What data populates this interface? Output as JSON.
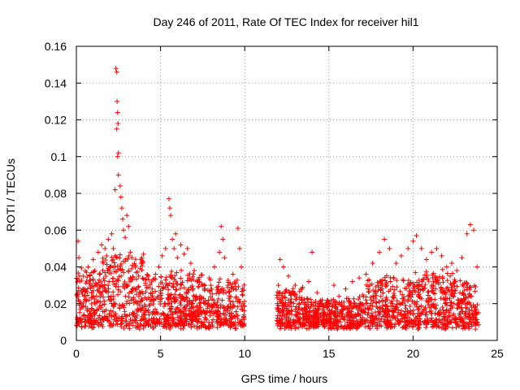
{
  "chart_data": {
    "type": "scatter",
    "title": "Day 246 of 2011, Rate Of TEC Index for receiver hil1",
    "xlabel": "GPS time / hours",
    "ylabel": "ROTI / TECUs",
    "xlim": [
      0,
      25
    ],
    "ylim": [
      0,
      0.16
    ],
    "xticks": [
      0,
      5,
      10,
      15,
      20,
      25
    ],
    "yticks": [
      0,
      0.02,
      0.04,
      0.06,
      0.08,
      0.1,
      0.12,
      0.14,
      0.16
    ],
    "xtick_labels": [
      "0",
      "5",
      "10",
      "15",
      "20",
      "25"
    ],
    "ytick_labels": [
      "0",
      "0.02",
      "0.04",
      "0.06",
      "0.08",
      "0.1",
      "0.12",
      "0.14",
      "0.16"
    ],
    "grid": true,
    "marker": "+",
    "series_color": "#ff0000",
    "gaps_hours": [
      [
        10.0,
        11.9
      ]
    ],
    "series": [
      {
        "name": "hil1",
        "points": [
          [
            0.05,
            0.025
          ],
          [
            0.1,
            0.054
          ],
          [
            0.15,
            0.045
          ],
          [
            0.2,
            0.032
          ],
          [
            0.3,
            0.018
          ],
          [
            0.4,
            0.035
          ],
          [
            0.5,
            0.028
          ],
          [
            0.6,
            0.022
          ],
          [
            0.7,
            0.04
          ],
          [
            0.8,
            0.031
          ],
          [
            0.9,
            0.026
          ],
          [
            1.0,
            0.044
          ],
          [
            1.1,
            0.038
          ],
          [
            1.2,
            0.03
          ],
          [
            1.3,
            0.048
          ],
          [
            1.4,
            0.036
          ],
          [
            1.5,
            0.052
          ],
          [
            1.6,
            0.042
          ],
          [
            1.7,
            0.05
          ],
          [
            1.8,
            0.046
          ],
          [
            1.9,
            0.055
          ],
          [
            2.0,
            0.04
          ],
          [
            2.1,
            0.058
          ],
          [
            2.2,
            0.05
          ],
          [
            2.3,
            0.082
          ],
          [
            2.35,
            0.148
          ],
          [
            2.4,
            0.146
          ],
          [
            2.42,
            0.13
          ],
          [
            2.45,
            0.124
          ],
          [
            2.47,
            0.118
          ],
          [
            2.4,
            0.115
          ],
          [
            2.5,
            0.102
          ],
          [
            2.45,
            0.1
          ],
          [
            2.5,
            0.09
          ],
          [
            2.6,
            0.084
          ],
          [
            2.65,
            0.078
          ],
          [
            2.7,
            0.072
          ],
          [
            2.75,
            0.066
          ],
          [
            2.8,
            0.06
          ],
          [
            2.9,
            0.056
          ],
          [
            3.0,
            0.068
          ],
          [
            3.1,
            0.062
          ],
          [
            3.2,
            0.048
          ],
          [
            3.3,
            0.045
          ],
          [
            3.5,
            0.04
          ],
          [
            3.7,
            0.035
          ],
          [
            3.9,
            0.042
          ],
          [
            4.1,
            0.03
          ],
          [
            4.3,
            0.033
          ],
          [
            4.5,
            0.028
          ],
          [
            4.7,
            0.036
          ],
          [
            4.9,
            0.04
          ],
          [
            5.1,
            0.046
          ],
          [
            5.3,
            0.05
          ],
          [
            5.5,
            0.077
          ],
          [
            5.55,
            0.072
          ],
          [
            5.6,
            0.068
          ],
          [
            5.7,
            0.055
          ],
          [
            5.8,
            0.05
          ],
          [
            5.9,
            0.058
          ],
          [
            6.0,
            0.045
          ],
          [
            6.2,
            0.052
          ],
          [
            6.4,
            0.047
          ],
          [
            6.6,
            0.05
          ],
          [
            6.8,
            0.042
          ],
          [
            7.0,
            0.038
          ],
          [
            7.3,
            0.032
          ],
          [
            7.6,
            0.028
          ],
          [
            7.9,
            0.034
          ],
          [
            8.2,
            0.04
          ],
          [
            8.5,
            0.048
          ],
          [
            8.6,
            0.062
          ],
          [
            8.7,
            0.055
          ],
          [
            8.8,
            0.045
          ],
          [
            9.0,
            0.03
          ],
          [
            9.3,
            0.036
          ],
          [
            9.6,
            0.061
          ],
          [
            9.7,
            0.05
          ],
          [
            9.8,
            0.04
          ],
          [
            9.9,
            0.02
          ],
          [
            12.0,
            0.03
          ],
          [
            12.1,
            0.044
          ],
          [
            12.3,
            0.04
          ],
          [
            12.6,
            0.035
          ],
          [
            13.0,
            0.03
          ],
          [
            13.4,
            0.028
          ],
          [
            13.8,
            0.032
          ],
          [
            14.0,
            0.048
          ],
          [
            14.3,
            0.026
          ],
          [
            14.6,
            0.022
          ],
          [
            15.0,
            0.02
          ],
          [
            15.3,
            0.03
          ],
          [
            15.6,
            0.024
          ],
          [
            16.0,
            0.028
          ],
          [
            16.4,
            0.032
          ],
          [
            16.8,
            0.034
          ],
          [
            17.2,
            0.036
          ],
          [
            17.6,
            0.042
          ],
          [
            18.0,
            0.048
          ],
          [
            18.3,
            0.055
          ],
          [
            18.6,
            0.05
          ],
          [
            19.0,
            0.042
          ],
          [
            19.3,
            0.046
          ],
          [
            19.7,
            0.05
          ],
          [
            20.0,
            0.054
          ],
          [
            20.2,
            0.057
          ],
          [
            20.5,
            0.05
          ],
          [
            20.8,
            0.044
          ],
          [
            21.1,
            0.048
          ],
          [
            21.4,
            0.05
          ],
          [
            21.7,
            0.046
          ],
          [
            22.0,
            0.04
          ],
          [
            22.3,
            0.042
          ],
          [
            22.6,
            0.038
          ],
          [
            22.9,
            0.045
          ],
          [
            23.2,
            0.058
          ],
          [
            23.4,
            0.063
          ],
          [
            23.6,
            0.06
          ],
          [
            23.8,
            0.04
          ]
        ]
      }
    ]
  }
}
